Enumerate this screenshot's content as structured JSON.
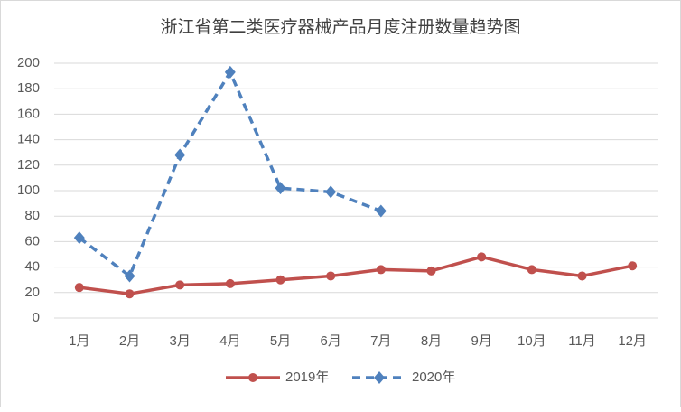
{
  "chart_data": {
    "type": "line",
    "title": "浙江省第二类医疗器械产品月度注册数量趋势图",
    "categories": [
      "1月",
      "2月",
      "3月",
      "4月",
      "5月",
      "6月",
      "7月",
      "8月",
      "9月",
      "10月",
      "11月",
      "12月"
    ],
    "series": [
      {
        "name": "2019年",
        "color": "#c0504d",
        "marker": "circle",
        "dashed": false,
        "values": [
          24,
          19,
          26,
          27,
          30,
          33,
          38,
          37,
          48,
          38,
          33,
          41
        ]
      },
      {
        "name": "2020年",
        "color": "#4f81bd",
        "marker": "diamond",
        "dashed": true,
        "values": [
          63,
          33,
          128,
          193,
          102,
          99,
          84,
          null,
          null,
          null,
          null,
          null
        ]
      }
    ],
    "ylim": [
      0,
      200
    ],
    "yticks": [
      0,
      20,
      40,
      60,
      80,
      100,
      120,
      140,
      160,
      180,
      200
    ],
    "grid": true,
    "legend": "bottom"
  }
}
